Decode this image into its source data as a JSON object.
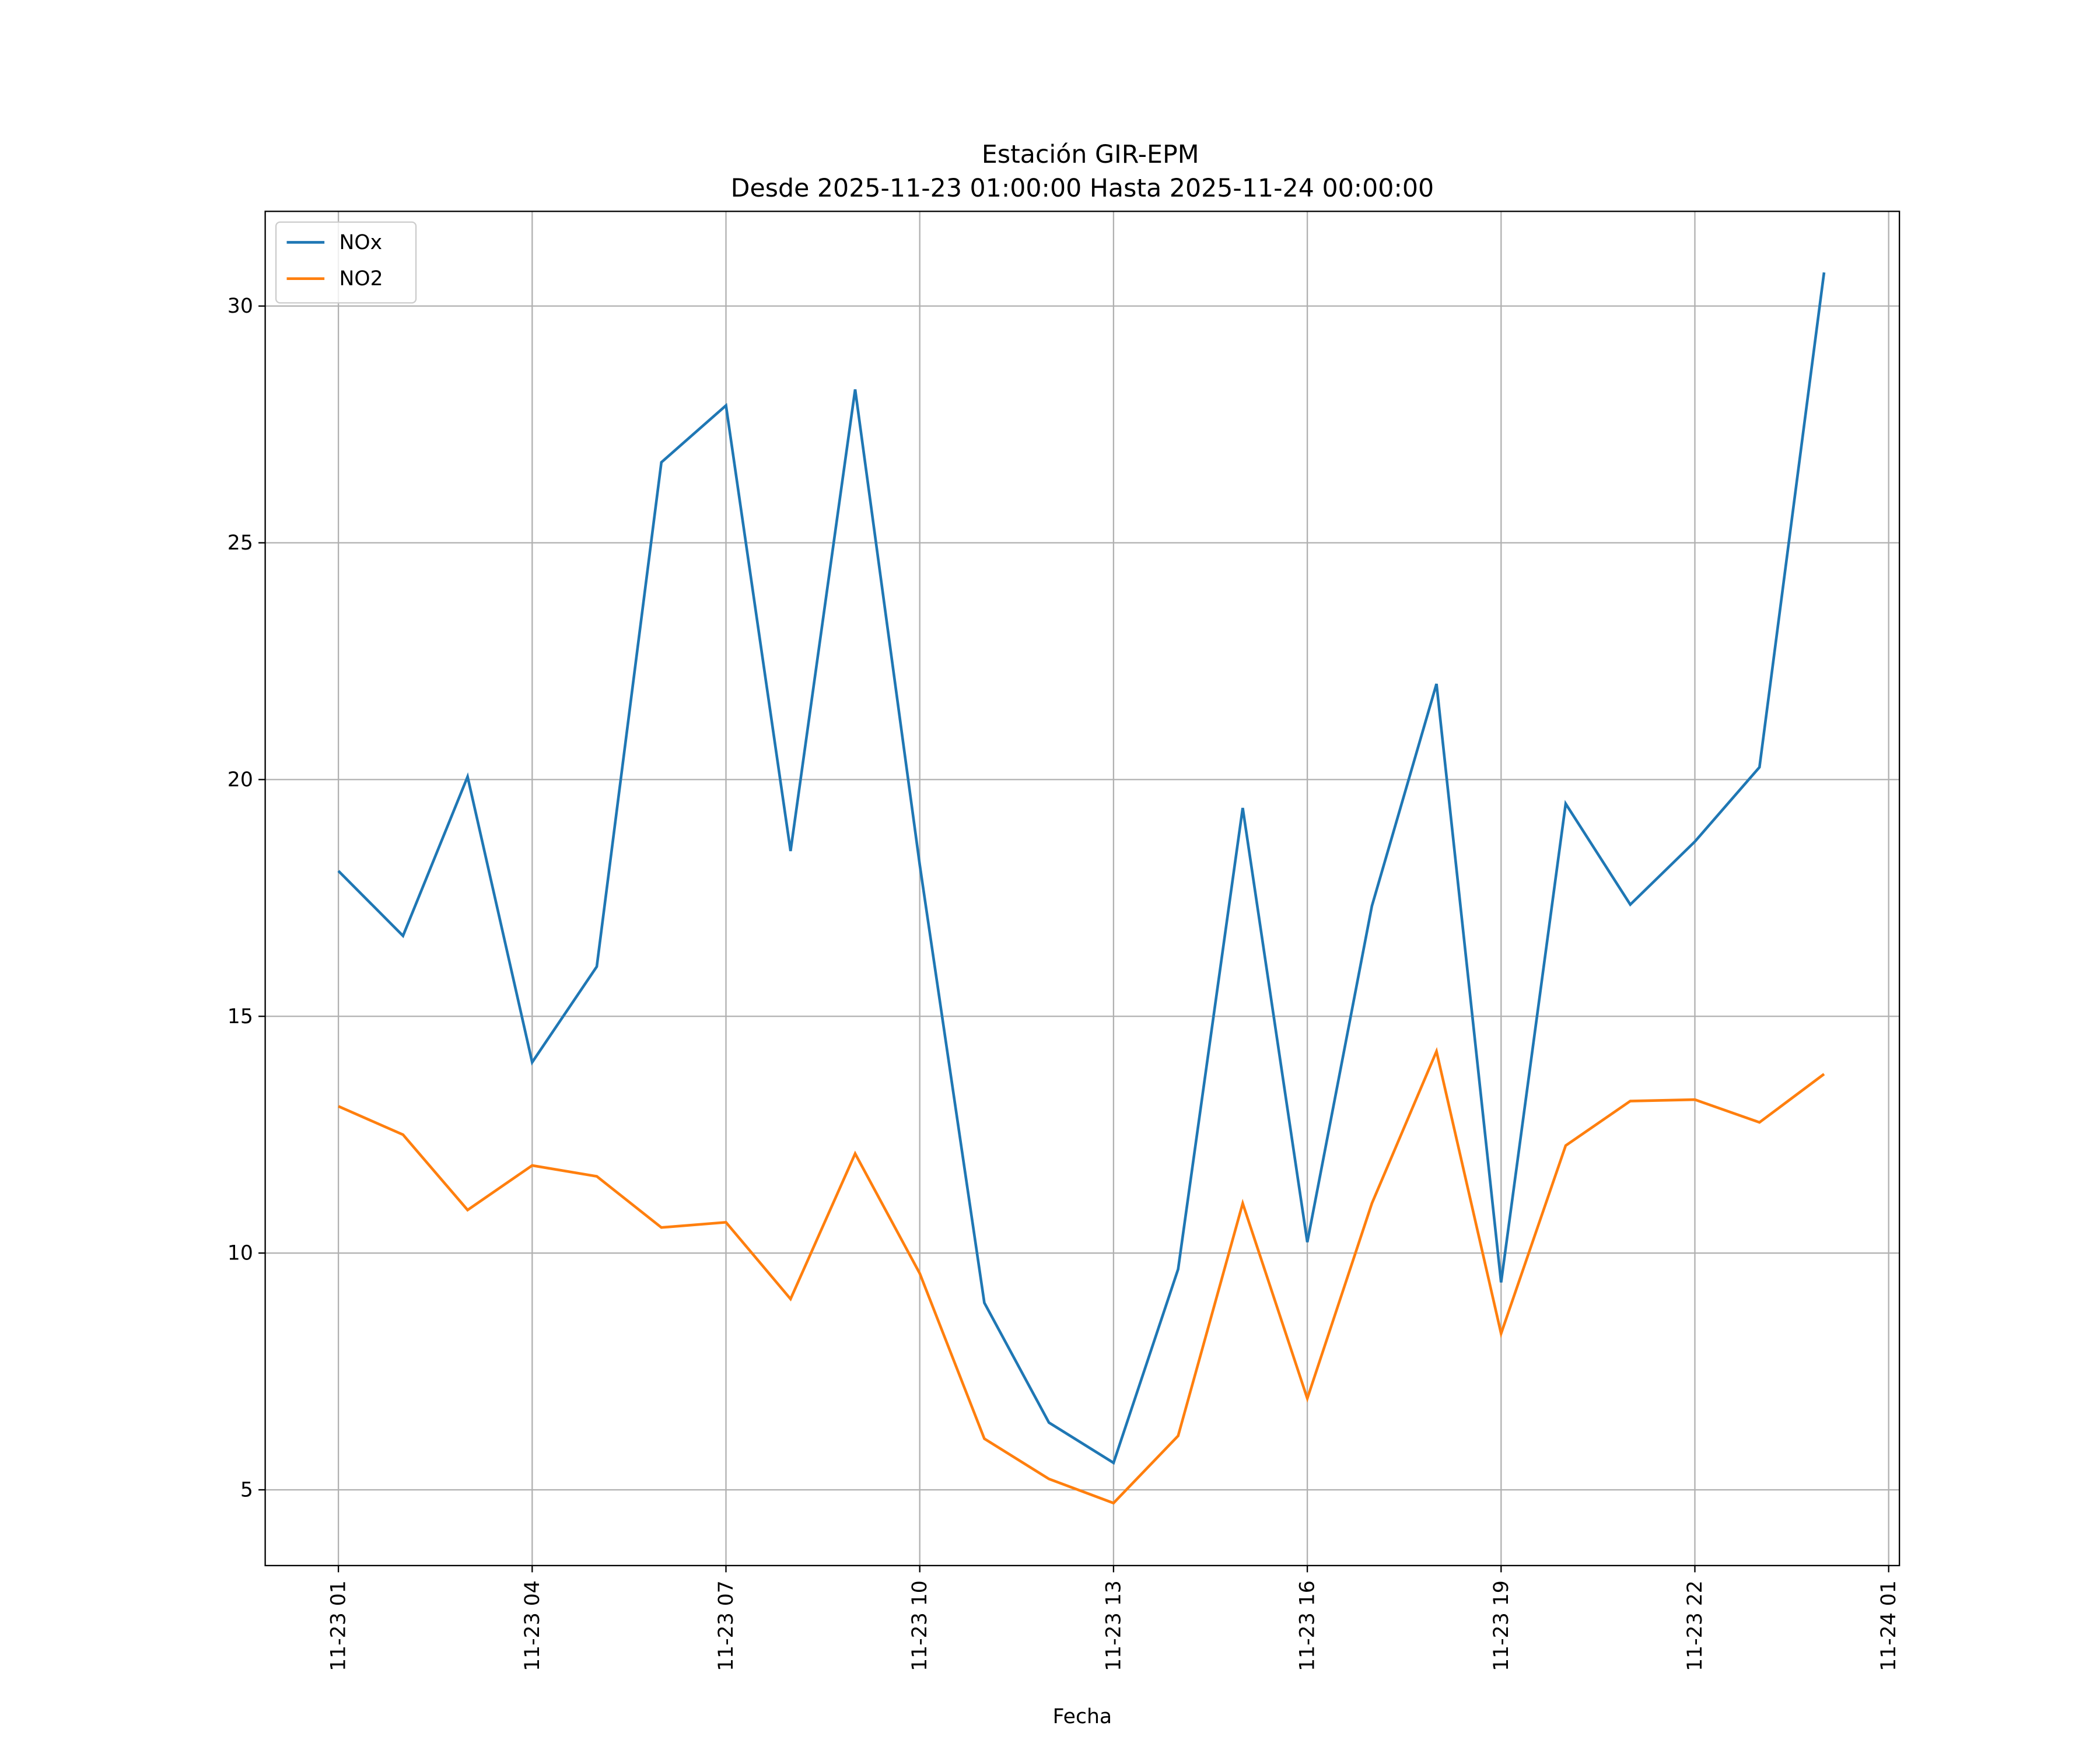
{
  "chart_data": {
    "type": "line",
    "title": "Estación GIR-EPM",
    "subtitle": "Desde 2025-11-23 01:00:00 Hasta 2025-11-24 00:00:00",
    "xlabel": "Fecha",
    "ylabel": "",
    "x": [
      "2025-11-23 01:00",
      "2025-11-23 02:00",
      "2025-11-23 03:00",
      "2025-11-23 04:00",
      "2025-11-23 05:00",
      "2025-11-23 06:00",
      "2025-11-23 07:00",
      "2025-11-23 08:00",
      "2025-11-23 09:00",
      "2025-11-23 10:00",
      "2025-11-23 11:00",
      "2025-11-23 12:00",
      "2025-11-23 13:00",
      "2025-11-23 14:00",
      "2025-11-23 15:00",
      "2025-11-23 16:00",
      "2025-11-23 17:00",
      "2025-11-23 18:00",
      "2025-11-23 19:00",
      "2025-11-23 20:00",
      "2025-11-23 21:00",
      "2025-11-23 22:00",
      "2025-11-23 23:00",
      "2025-11-24 00:00"
    ],
    "series": [
      {
        "name": "NOx",
        "color": "#1f77b4",
        "values": [
          18.07,
          16.7,
          20.06,
          14.03,
          16.05,
          26.7,
          27.9,
          18.49,
          28.24,
          18.2,
          8.95,
          6.42,
          5.57,
          9.66,
          19.4,
          10.23,
          17.33,
          22.02,
          9.38,
          19.49,
          17.36,
          18.69,
          20.26,
          30.71
        ]
      },
      {
        "name": "NO2",
        "color": "#ff7f0e",
        "values": [
          13.1,
          12.5,
          10.91,
          11.85,
          11.62,
          10.54,
          10.65,
          9.03,
          12.1,
          9.57,
          6.08,
          5.23,
          4.72,
          6.14,
          11.05,
          6.93,
          11.05,
          14.26,
          8.3,
          12.27,
          13.21,
          13.24,
          12.76,
          13.78
        ]
      }
    ],
    "xticks": [
      "11-23 01",
      "11-23 04",
      "11-23 07",
      "11-23 10",
      "11-23 13",
      "11-23 16",
      "11-23 19",
      "11-23 22",
      "11-24 01"
    ],
    "yticks": [
      "5",
      "10",
      "15",
      "20",
      "25",
      "30"
    ],
    "ylim": [
      3.4,
      32.0
    ],
    "xlim": [
      "2025-11-22 23:52",
      "2025-11-24 01:10"
    ],
    "grid": true,
    "legend": "top-left"
  }
}
